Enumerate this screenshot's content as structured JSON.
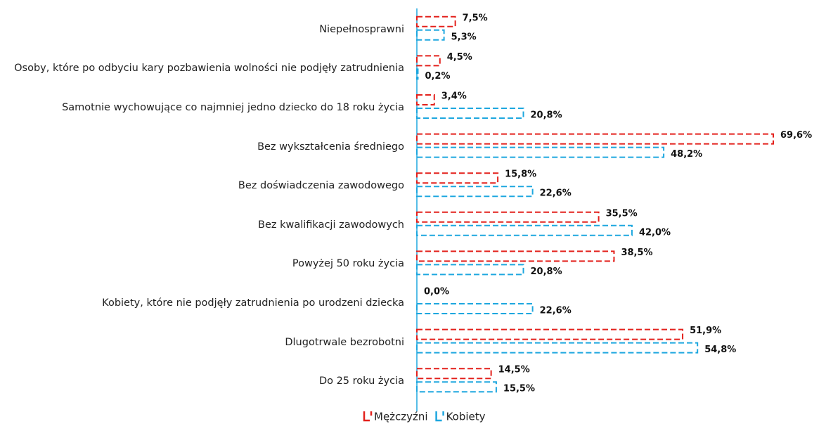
{
  "chart_data": {
    "type": "bar",
    "orientation": "horizontal",
    "categories": [
      "Niepełnosprawni",
      "Osoby, które po odbyciu kary pozbawienia wolności nie podjęły zatrudnienia",
      "Samotnie wychowujące co najmniej jedno dziecko do 18 roku życia",
      "Bez wykształcenia średniego",
      "Bez doświadczenia zawodowego",
      "Bez kwalifikacji zawodowych",
      "Powyżej 50 roku życia",
      "Kobiety, które nie podjęły zatrudnienia po urodzeni dziecka",
      "Dlugotrwale bezrobotni",
      "Do 25 roku życia"
    ],
    "series": [
      {
        "name": "Mężczyźni",
        "color": "#e3211c",
        "values": [
          7.5,
          4.5,
          3.4,
          69.6,
          15.8,
          35.5,
          38.5,
          0.0,
          51.9,
          14.5
        ],
        "value_labels": [
          "7,5%",
          "4,5%",
          "3,4%",
          "69,6%",
          "15,8%",
          "35,5%",
          "38,5%",
          "0,0%",
          "51,9%",
          "14,5%"
        ]
      },
      {
        "name": "Kobiety",
        "color": "#1ea7df",
        "values": [
          5.3,
          0.2,
          20.8,
          48.2,
          22.6,
          42.0,
          20.8,
          22.6,
          54.8,
          15.5
        ],
        "value_labels": [
          "5,3%",
          "0,2%",
          "20,8%",
          "48,2%",
          "22,6%",
          "42,0%",
          "20,8%",
          "22,6%",
          "54,8%",
          "15,5%"
        ]
      }
    ],
    "legend": "bottom"
  }
}
